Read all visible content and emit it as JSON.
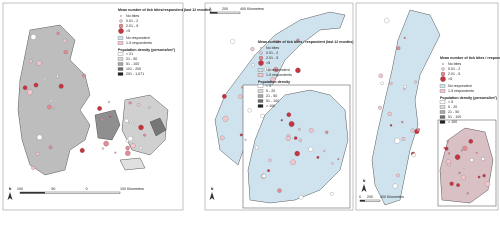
{
  "panels": [
    {
      "bites_title": "Mean number of tick bites/respondent (last 12 months)",
      "bites": [
        "No bites",
        "0.01 - 2",
        "2.01 - 5",
        ">5"
      ],
      "respondents": [
        "No respondent",
        "1-5 respondents"
      ],
      "density_title": "Population density (persons/km²)",
      "density": [
        "< 21",
        "21 - 50",
        "51 - 100",
        "101 - 200",
        "201 - 1,071"
      ],
      "scale": [
        "100",
        "50",
        "0",
        "100 Kilometers"
      ],
      "north": "N"
    },
    {
      "bites_title": "Mean number of tick bites / respondent (last 12 months)",
      "bites": [
        "No bites",
        "0.01 - 2",
        "2.01 - 5",
        ">5"
      ],
      "respondents": [
        "No respondent",
        "1-5 respondents"
      ],
      "density_title": "Population density",
      "density": [
        "< 5",
        "5 - 20",
        "21 - 50",
        "51 - 100",
        "> 100"
      ],
      "scale": [
        "0",
        "200",
        "400 Kilometers"
      ],
      "north": "N"
    },
    {
      "bites_title": "Mean number of tick bites / respondent (last 12 months)",
      "bites": [
        "No bites",
        "0.01 - 2",
        "2.01 - 5",
        ">5"
      ],
      "respondents": [
        "No respondent",
        "1-5 respondents"
      ],
      "density_title": "Population density (persons/km²)",
      "density": [
        "< 5",
        "5 - 20",
        "21 - 50",
        "51 - 100",
        "> 100"
      ],
      "scale": [
        "0",
        "200",
        "400 Kilometers"
      ],
      "north": "N"
    }
  ]
}
